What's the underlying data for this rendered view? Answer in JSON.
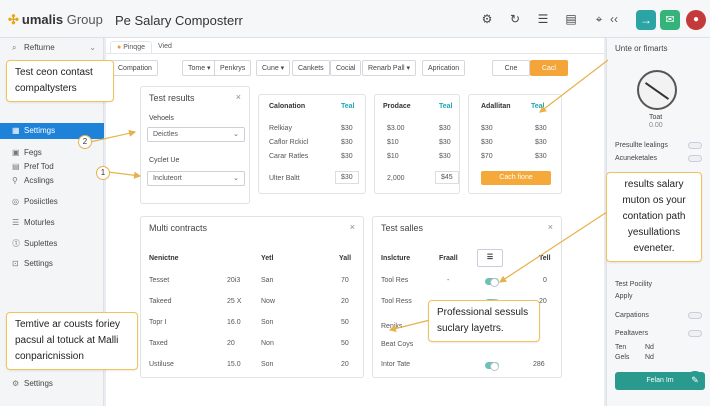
{
  "header": {
    "logo_mark": "✣",
    "logo_text": "umalis",
    "logo_suffix": "Group",
    "app_title": "Pe Salary Composterr",
    "icons": [
      "puzzle-icon",
      "refresh-icon",
      "list-icon",
      "chat-icon",
      "share-icon"
    ],
    "icon_glyphs": [
      "⚙",
      "↻",
      "☰",
      "▤",
      "⌖"
    ],
    "chevron": "‹‹",
    "teal_btn": "→",
    "green_btn": "✉",
    "avatar_glyph": "●"
  },
  "sidebar": {
    "search_label": "Refturne",
    "items": [
      {
        "label": "Settimgs",
        "glyph": "▦"
      },
      {
        "label": "Fegs",
        "glyph": "▣"
      },
      {
        "label": "Pref Tod",
        "glyph": "▤"
      },
      {
        "label": "Acslings",
        "glyph": "⚲"
      },
      {
        "label": "Posiictles",
        "glyph": "◎"
      },
      {
        "label": "Moturles",
        "glyph": "☰"
      },
      {
        "label": "Suplettes",
        "glyph": "⓵"
      },
      {
        "label": "Settings",
        "glyph": "⊡"
      }
    ],
    "footer_label": "Settings",
    "footer_glyph": "⚙"
  },
  "main": {
    "tabs": [
      "Pinqge",
      "Vied"
    ],
    "filters": [
      "Compation",
      "Tome ▾",
      "Penkrys",
      "Cune ▾",
      "Cankets",
      "Cocial",
      "Renarb Pall ▾",
      "Aprication"
    ],
    "right_filters": [
      "Cne",
      "Cacl"
    ],
    "test_results": {
      "title": "Test results",
      "vehicles_label": "Vehoels",
      "vehicles_value": "Deictles",
      "cycle_label": "Cyclet Ue",
      "cycle_value": "Incluteort"
    },
    "calculation": {
      "head1": "Calonation",
      "head2": "Teal",
      "rows": [
        [
          "Relkiay",
          "$30"
        ],
        [
          "Caflor Rckicl",
          "$30"
        ],
        [
          "Carar Ratles",
          "$30"
        ]
      ],
      "footer": [
        "Ulter Baltt",
        "$30"
      ]
    },
    "product": {
      "head1": "Prodace",
      "head2": "Teal",
      "rows": [
        [
          "$3.00",
          "$30"
        ],
        [
          "$10",
          "$30"
        ],
        [
          "$10",
          "$30"
        ]
      ],
      "footer": [
        "2,000",
        "$45"
      ]
    },
    "addition": {
      "head1": "Adallitan",
      "head2": "Teal",
      "rows": [
        [
          "$30",
          "$30"
        ],
        [
          "$30",
          "$30"
        ],
        [
          "$70",
          "$30"
        ]
      ],
      "button": "Cach fione"
    },
    "multi": {
      "title": "Multi contracts",
      "headers": [
        "Nenictne",
        "",
        "Yetl",
        "Yall"
      ],
      "rows": [
        [
          "Tesset",
          "20i3",
          "San",
          "70"
        ],
        [
          "Takeed",
          "25 X",
          "Now",
          "20"
        ],
        [
          "Topr I",
          "16.0",
          "Son",
          "50"
        ],
        [
          "Taxed",
          "20",
          "Non",
          "50"
        ],
        [
          "Ustiluse",
          "15.0",
          "Son",
          "20"
        ]
      ]
    },
    "sales": {
      "title": "Test salles",
      "headers": [
        "Inslcture",
        "Fraall",
        "☰",
        "Tell"
      ],
      "rows": [
        [
          "Tool Res",
          "-",
          "",
          "0"
        ],
        [
          "Tool Ress",
          "",
          "",
          "20"
        ],
        [
          "Reniks",
          "",
          "",
          ""
        ],
        [
          "Beat Coys",
          "",
          "",
          ""
        ],
        [
          "Intor Tate",
          "",
          "",
          "286"
        ]
      ]
    }
  },
  "right_panel": {
    "title": "Unte or fimarts",
    "gauge_label": "Toat",
    "gauge_value": "0.00",
    "rows": [
      {
        "label": "Presullte lealings"
      },
      {
        "label": "Acuneketales"
      },
      {
        "label": "Test Pocility"
      },
      {
        "label": "Apply"
      },
      {
        "label": "Carpations"
      },
      {
        "label": "Pealtavers"
      },
      {
        "label": "Ten"
      },
      {
        "label": "Gels"
      }
    ],
    "row_values": [
      "Nd",
      "Nd"
    ],
    "primary_button": "Felan Im"
  },
  "callouts": [
    "Test ceon contast compaltysters",
    "results salary muton os your contation path yesullations eveneter.",
    "Professional sessuls suclary layetrs.",
    "Temtive ar cousts foriey pacsul al totuck at Malli conparicnission"
  ],
  "badges": [
    "2",
    "1"
  ]
}
